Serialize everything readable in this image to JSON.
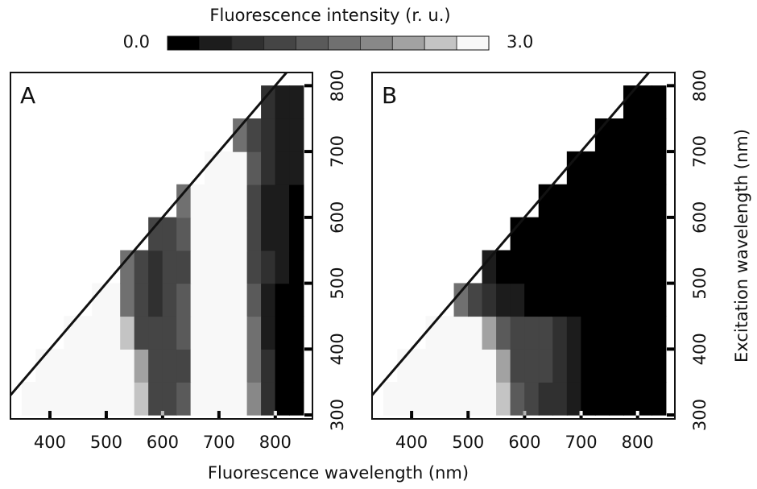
{
  "figure": {
    "xlabel": "Fluorescence wavelength (nm)",
    "ylabel": "Excitation wavelength (nm)",
    "colorbar": {
      "title": "Fluorescence intensity (r. u.)",
      "lim": [
        0,
        3
      ],
      "ticks": [
        {
          "value": 0,
          "label": "0.0"
        },
        {
          "value": 3,
          "label": "3.0"
        }
      ],
      "colors": [
        "#000000",
        "#1c1c1c",
        "#303030",
        "#454545",
        "#5a5a5a",
        "#707070",
        "#888888",
        "#a2a2a2",
        "#c4c4c4",
        "#f8f8f8"
      ]
    }
  },
  "chart_data": [
    {
      "type": "heatmap",
      "panel_label": "A",
      "x_edges": [
        350,
        375,
        400,
        425,
        450,
        475,
        500,
        525,
        550,
        575,
        600,
        625,
        650,
        675,
        700,
        725,
        750,
        775,
        800,
        825,
        850
      ],
      "y_edges": [
        300,
        350,
        400,
        450,
        500,
        550,
        600,
        650,
        700,
        750,
        800
      ],
      "xlim": [
        330,
        866
      ],
      "ylim": [
        294,
        820
      ],
      "xticks": [
        400,
        500,
        600,
        700,
        800
      ],
      "yticks": [
        300,
        400,
        500,
        600,
        700,
        800
      ],
      "z": [
        [
          3,
          3,
          3,
          3,
          3,
          3,
          3,
          3,
          2.5,
          1.2,
          1.0,
          1.3,
          3,
          3,
          3,
          3,
          2.0,
          0.8,
          0.3,
          0.2
        ],
        [
          null,
          3,
          3,
          3,
          3,
          3,
          3,
          3,
          2.2,
          1.0,
          0.9,
          1.2,
          3,
          3,
          3,
          3,
          1.5,
          0.7,
          0.3,
          0.2
        ],
        [
          null,
          null,
          null,
          3,
          3,
          3,
          3,
          2.5,
          1.2,
          0.9,
          1.0,
          1.4,
          3,
          3,
          3,
          3,
          1.5,
          0.6,
          0.3,
          0.2
        ],
        [
          null,
          null,
          null,
          null,
          null,
          3,
          2.8,
          1.6,
          1.0,
          0.8,
          0.9,
          1.3,
          3,
          3,
          3,
          3,
          1.4,
          0.6,
          0.3,
          0.3
        ],
        [
          null,
          null,
          null,
          null,
          null,
          null,
          null,
          1.5,
          0.9,
          0.7,
          0.9,
          1.2,
          3,
          3,
          3,
          3,
          1.2,
          0.7,
          0.4,
          0.3
        ],
        [
          null,
          null,
          null,
          null,
          null,
          null,
          null,
          null,
          null,
          1.0,
          1.0,
          1.3,
          3,
          3,
          3,
          3,
          1.0,
          0.6,
          0.4,
          0.3
        ],
        [
          null,
          null,
          null,
          null,
          null,
          null,
          null,
          null,
          null,
          null,
          null,
          1.5,
          3,
          3,
          3,
          3,
          1.0,
          0.6,
          0.5,
          0.3
        ],
        [
          null,
          null,
          null,
          null,
          null,
          null,
          null,
          null,
          null,
          null,
          null,
          null,
          null,
          2.8,
          3,
          3,
          1.3,
          0.7,
          0.5,
          0.4
        ],
        [
          null,
          null,
          null,
          null,
          null,
          null,
          null,
          null,
          null,
          null,
          null,
          null,
          null,
          null,
          null,
          1.5,
          1.0,
          0.7,
          0.5,
          0.4
        ],
        [
          null,
          null,
          null,
          null,
          null,
          null,
          null,
          null,
          null,
          null,
          null,
          null,
          null,
          null,
          null,
          null,
          null,
          0.8,
          0.6,
          0.5
        ]
      ]
    },
    {
      "type": "heatmap",
      "panel_label": "B",
      "x_edges": [
        350,
        375,
        400,
        425,
        450,
        475,
        500,
        525,
        550,
        575,
        600,
        625,
        650,
        675,
        700,
        725,
        750,
        775,
        800,
        825,
        850
      ],
      "y_edges": [
        300,
        350,
        400,
        450,
        500,
        550,
        600,
        650,
        700,
        750,
        800
      ],
      "xlim": [
        330,
        866
      ],
      "ylim": [
        294,
        820
      ],
      "xticks": [
        400,
        500,
        600,
        700,
        800
      ],
      "yticks": [
        300,
        400,
        500,
        600,
        700,
        800
      ],
      "z": [
        [
          3,
          3,
          3,
          3,
          3,
          3,
          3,
          3,
          2.6,
          1.4,
          0.9,
          0.8,
          0.7,
          0.5,
          0.2,
          0.1,
          0.1,
          0.1,
          0.1,
          0.1
        ],
        [
          null,
          3,
          3,
          3,
          3,
          3,
          3,
          3,
          2.2,
          1.2,
          0.9,
          0.9,
          0.8,
          0.5,
          0.2,
          0.1,
          0.1,
          0.1,
          0.1,
          0.1
        ],
        [
          null,
          null,
          null,
          3,
          3,
          3,
          3,
          2.4,
          1.3,
          1.0,
          0.9,
          1.1,
          0.8,
          0.4,
          0.2,
          0.1,
          0.1,
          0.1,
          0.1,
          0.1
        ],
        [
          null,
          null,
          null,
          null,
          null,
          1.5,
          1.0,
          0.7,
          0.5,
          0.4,
          0.3,
          0.2,
          0.1,
          0.1,
          0.1,
          0.1,
          0.1,
          0.1,
          0.1,
          0.1
        ],
        [
          null,
          null,
          null,
          null,
          null,
          null,
          null,
          0.4,
          0.3,
          0.3,
          0.2,
          0.2,
          0.1,
          0.1,
          0.1,
          0.1,
          0.1,
          0.1,
          0.1,
          0.1
        ],
        [
          null,
          null,
          null,
          null,
          null,
          null,
          null,
          null,
          null,
          0.2,
          0.1,
          0.1,
          0.1,
          0.1,
          0.1,
          0.1,
          0.1,
          0.1,
          0.1,
          0.1
        ],
        [
          null,
          null,
          null,
          null,
          null,
          null,
          null,
          null,
          null,
          null,
          null,
          0.1,
          0.1,
          0.1,
          0.1,
          0.1,
          0.1,
          0.1,
          0.1,
          0.1
        ],
        [
          null,
          null,
          null,
          null,
          null,
          null,
          null,
          null,
          null,
          null,
          null,
          null,
          null,
          0.1,
          0.1,
          0.1,
          0.1,
          0.1,
          0.1,
          0.1
        ],
        [
          null,
          null,
          null,
          null,
          null,
          null,
          null,
          null,
          null,
          null,
          null,
          null,
          null,
          null,
          null,
          0.1,
          0.1,
          0.1,
          0.1,
          0.1
        ],
        [
          null,
          null,
          null,
          null,
          null,
          null,
          null,
          null,
          null,
          null,
          null,
          null,
          null,
          null,
          null,
          null,
          null,
          0.1,
          0.1,
          0.1
        ]
      ]
    }
  ]
}
